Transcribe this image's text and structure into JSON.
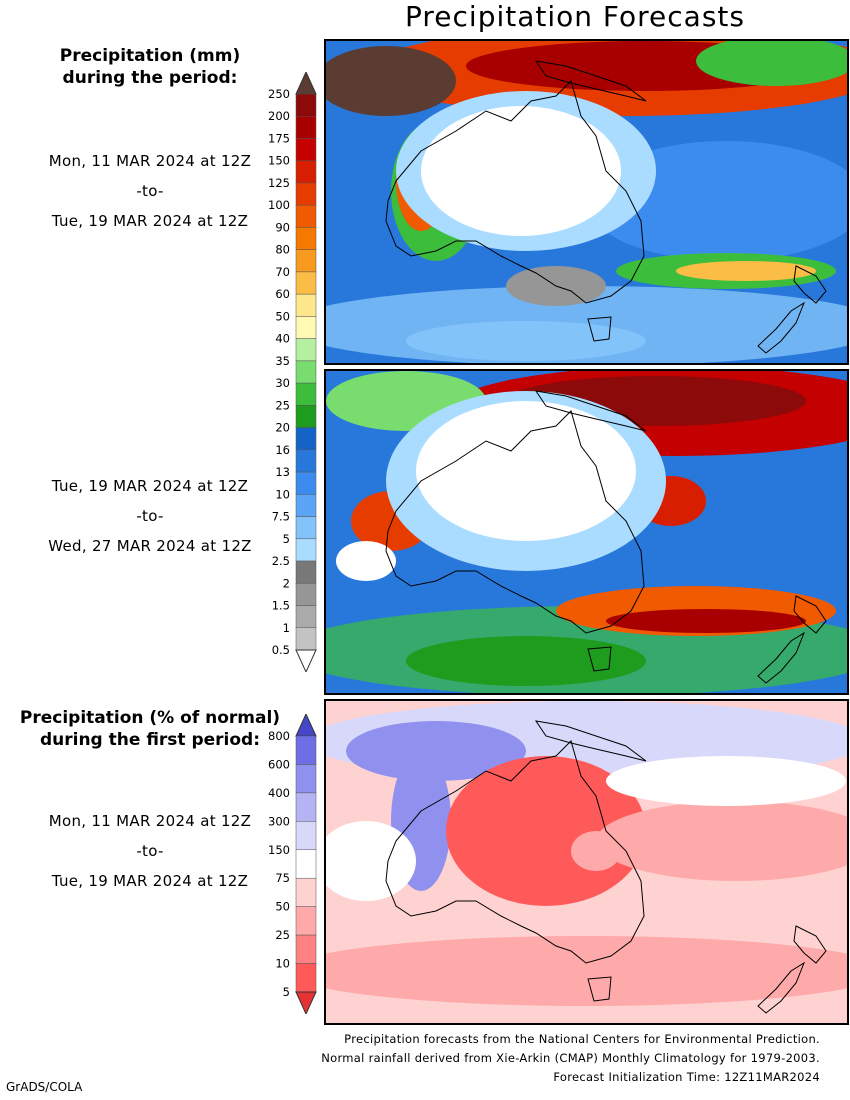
{
  "title": "Precipitation Forecasts",
  "panel1": {
    "heading": [
      "Precipitation (mm)",
      "during the period:"
    ],
    "start": "Mon, 11 MAR 2024 at 12Z",
    "to": "-to-",
    "end": "Tue, 19 MAR 2024 at 12Z"
  },
  "panel2": {
    "start": "Tue, 19 MAR 2024 at 12Z",
    "to": "-to-",
    "end": "Wed, 27 MAR 2024 at 12Z"
  },
  "panel3": {
    "heading": [
      "Precipitation (% of normal)",
      "during the first period:"
    ],
    "start": "Mon, 11 MAR 2024 at 12Z",
    "to": "-to-",
    "end": "Tue, 19 MAR 2024 at 12Z"
  },
  "mm_scale": {
    "levels": [
      "250",
      "200",
      "175",
      "150",
      "125",
      "100",
      "90",
      "80",
      "70",
      "60",
      "50",
      "40",
      "35",
      "30",
      "25",
      "20",
      "16",
      "13",
      "10",
      "7.5",
      "5",
      "2.5",
      "2",
      "1.5",
      "1",
      "0.5"
    ],
    "colors": [
      "#8c0a0a",
      "#a80000",
      "#c40000",
      "#d81e00",
      "#e63c00",
      "#f05a00",
      "#f57800",
      "#f89a20",
      "#fbbd45",
      "#fde68c",
      "#fff9b4",
      "#b4f0a0",
      "#78dc6e",
      "#3cbe3c",
      "#1e9c1e",
      "#1464c8",
      "#2878dc",
      "#3c8cf0",
      "#5aa5f5",
      "#82c3fa",
      "#aadcff",
      "#787878",
      "#969696",
      "#aaaaaa",
      "#c3c3c3"
    ],
    "top_color": "#5a3c32"
  },
  "pct_scale": {
    "levels": [
      "800",
      "600",
      "400",
      "300",
      "150",
      "75",
      "50",
      "25",
      "10",
      "5"
    ],
    "colors": [
      "#6e6ee6",
      "#9090ee",
      "#b4b4f4",
      "#d8d8fa",
      "#ffffff",
      "#ffd2d2",
      "#ffaaaa",
      "#ff8282",
      "#ff5a5a"
    ],
    "top_color": "#4646c8",
    "bottom_color": "#e63232"
  },
  "footer": [
    "Precipitation forecasts from the National Centers for Environmental Prediction.",
    "Normal rainfall derived from Xie-Arkin (CMAP) Monthly Climatology for 1979-2003.",
    "Forecast Initialization Time: 12Z11MAR2024"
  ],
  "credit": "GrADS/COLA"
}
